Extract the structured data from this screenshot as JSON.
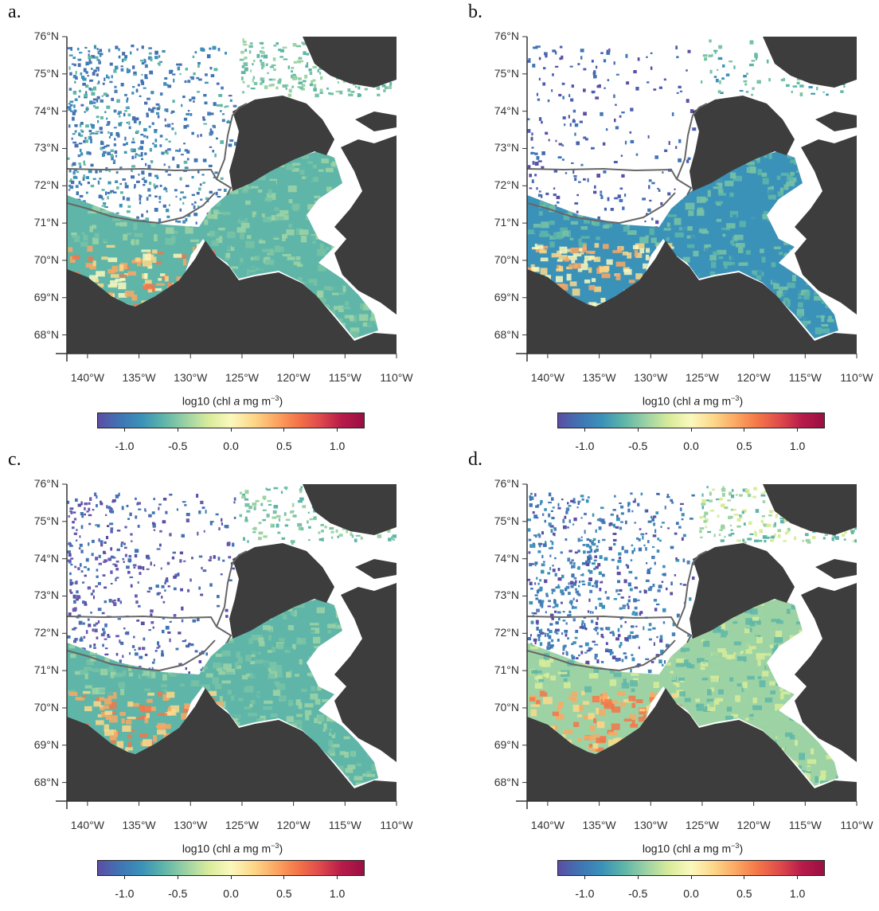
{
  "figure": {
    "lat_labels": [
      "76°N",
      "75°N",
      "74°N",
      "73°N",
      "72°N",
      "71°N",
      "70°N",
      "69°N",
      "68°N"
    ],
    "lon_labels": [
      "140°W",
      "135°W",
      "130°W",
      "125°W",
      "120°W",
      "115°W",
      "110°W"
    ],
    "colorbar": {
      "title_prefix": "log10 (chl ",
      "title_italic": "a",
      "title_unit": " mg m",
      "title_sup": "−3",
      "title_close": ")",
      "ticks": [
        "-1.0",
        "-0.5",
        "0.0",
        "0.5",
        "1.0"
      ],
      "tick_values": [
        -1.0,
        -0.5,
        0.0,
        0.5,
        1.0
      ],
      "range": [
        -1.25,
        1.25
      ],
      "palette": [
        "#5b4ea4",
        "#3f75b4",
        "#3b92b8",
        "#5fb6a8",
        "#9dd3a4",
        "#d8ec9a",
        "#fbf8bd",
        "#fdd88a",
        "#fca863",
        "#f47648",
        "#df4b4b",
        "#b81b4a",
        "#9a0f43"
      ]
    },
    "land_color": "#3d3d3d",
    "boundary_color": "#666666",
    "panels": [
      {
        "letter": "a."
      },
      {
        "letter": "b."
      },
      {
        "letter": "c."
      },
      {
        "letter": "d."
      }
    ]
  },
  "chart_data": {
    "type": "heatmap",
    "variable": "log10 (chl a mg m−3)",
    "lat_range": [
      67.5,
      76
    ],
    "lon_range": [
      -142,
      -110
    ],
    "color_range": [
      -1.25,
      1.25
    ],
    "panels": [
      "a.",
      "b.",
      "c.",
      "d."
    ]
  }
}
